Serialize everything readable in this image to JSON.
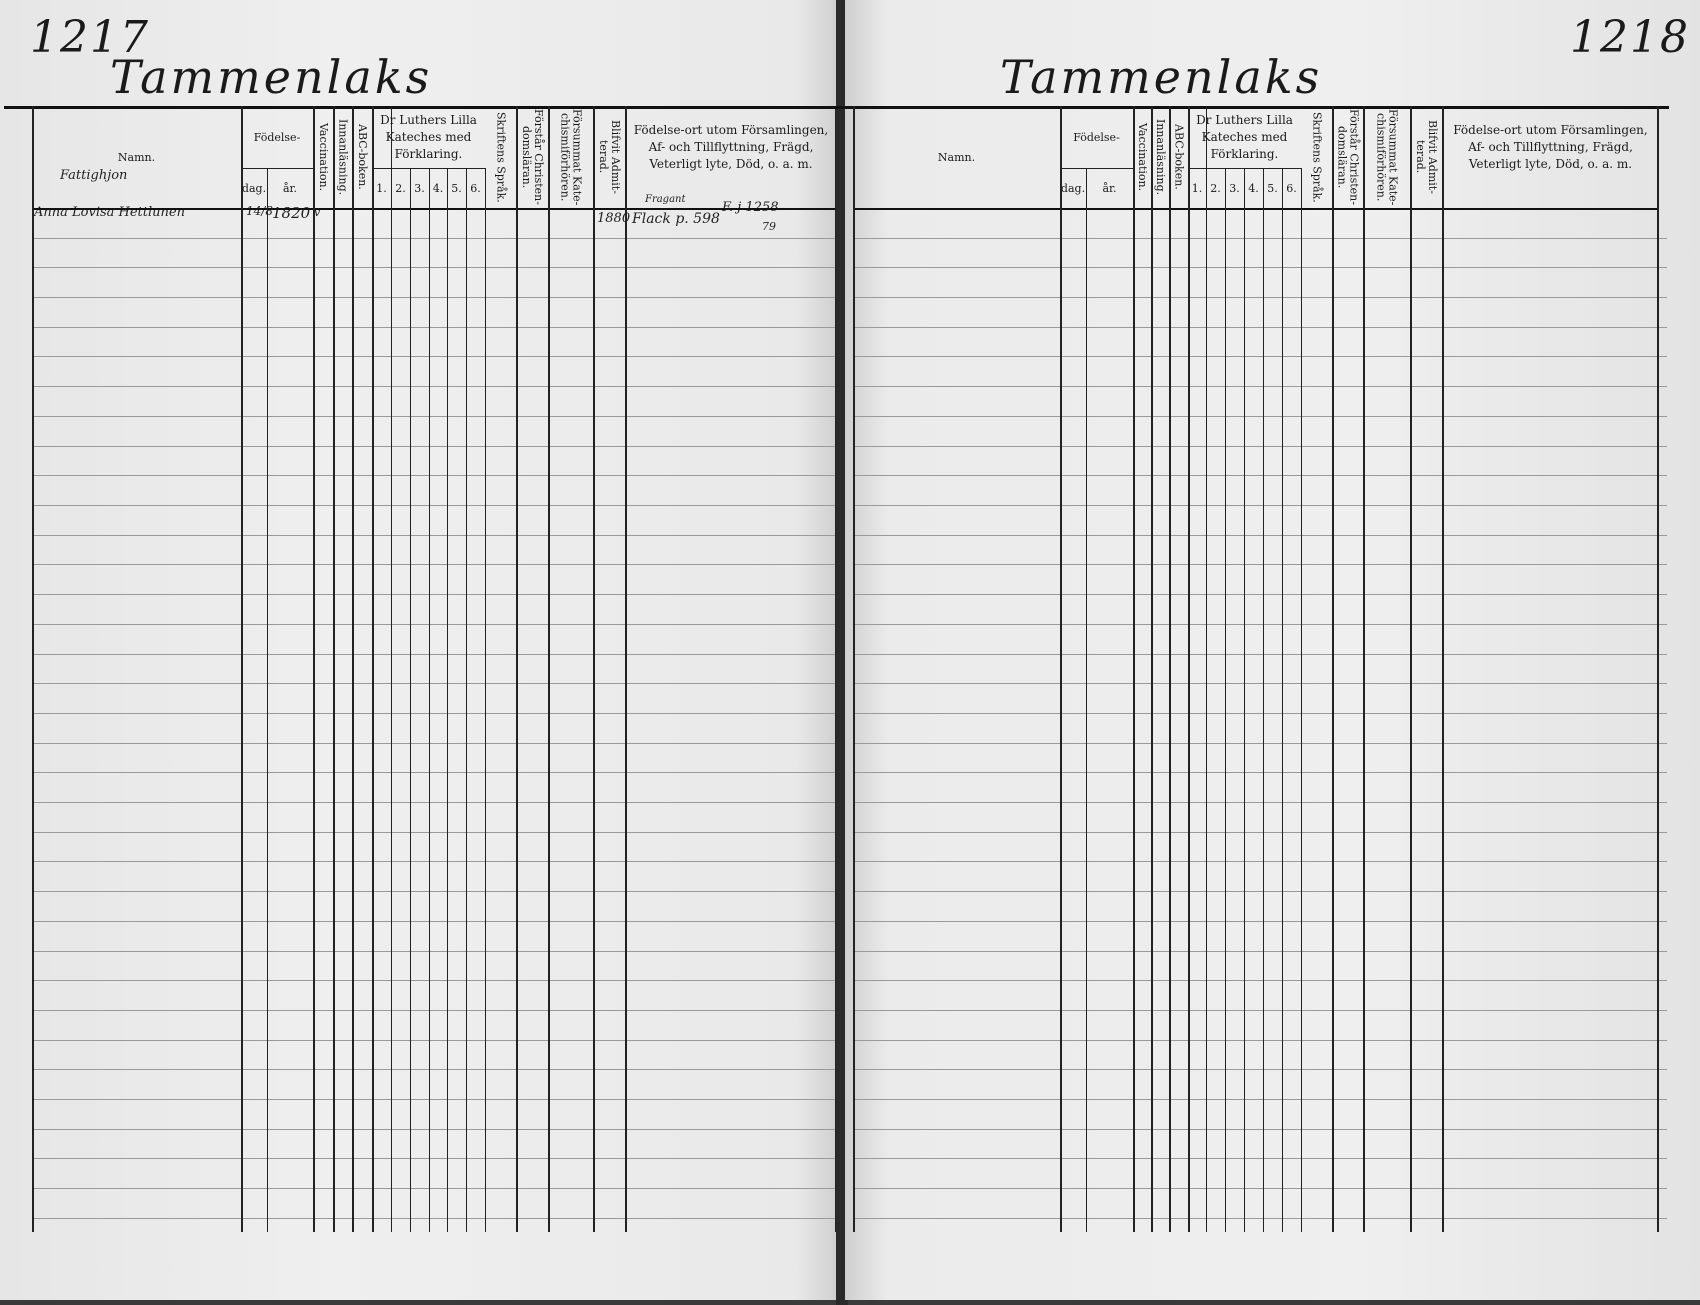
{
  "left_page": {
    "page_number": "1217",
    "parish": "Tammenlaks",
    "section_heading": "Fattighjon",
    "entries": [
      {
        "name": "Anna Lovisa Hettlunen",
        "birth_day": "14/8",
        "birth_year": "1820",
        "vaccination": "v",
        "remark_top": "Fragant",
        "remark_year": "1880",
        "remark": "Flack p. 598",
        "remark_ref": "F. j 1258",
        "remark_ref_sub": "79"
      }
    ]
  },
  "right_page": {
    "page_number": "1218",
    "parish": "Tammenlaks"
  },
  "headers": {
    "name": "Namn.",
    "birth": "Födelse-",
    "birth_day": "dag.",
    "birth_year": "år.",
    "vaccination": "Vaccination.",
    "reading": "Innanläsning.",
    "abc": "ABC-boken.",
    "catechism": "Dr Luthers Lilla Kateches med Förklaring.",
    "catechism_parts": [
      "1.",
      "2.",
      "3.",
      "4.",
      "5.",
      "6."
    ],
    "scripture_language": "Skriftens Språk.",
    "understands": "Förstår Christen-domsläran.",
    "missed": "Försummat Kate-chismiförhören.",
    "admitted": "Blifvit Admit-terad.",
    "remarks": "Födelse-ort utom Församlingen, Af- och Tillflyttning, Frägd, Veterligt lyte, Död, o. a. m."
  }
}
